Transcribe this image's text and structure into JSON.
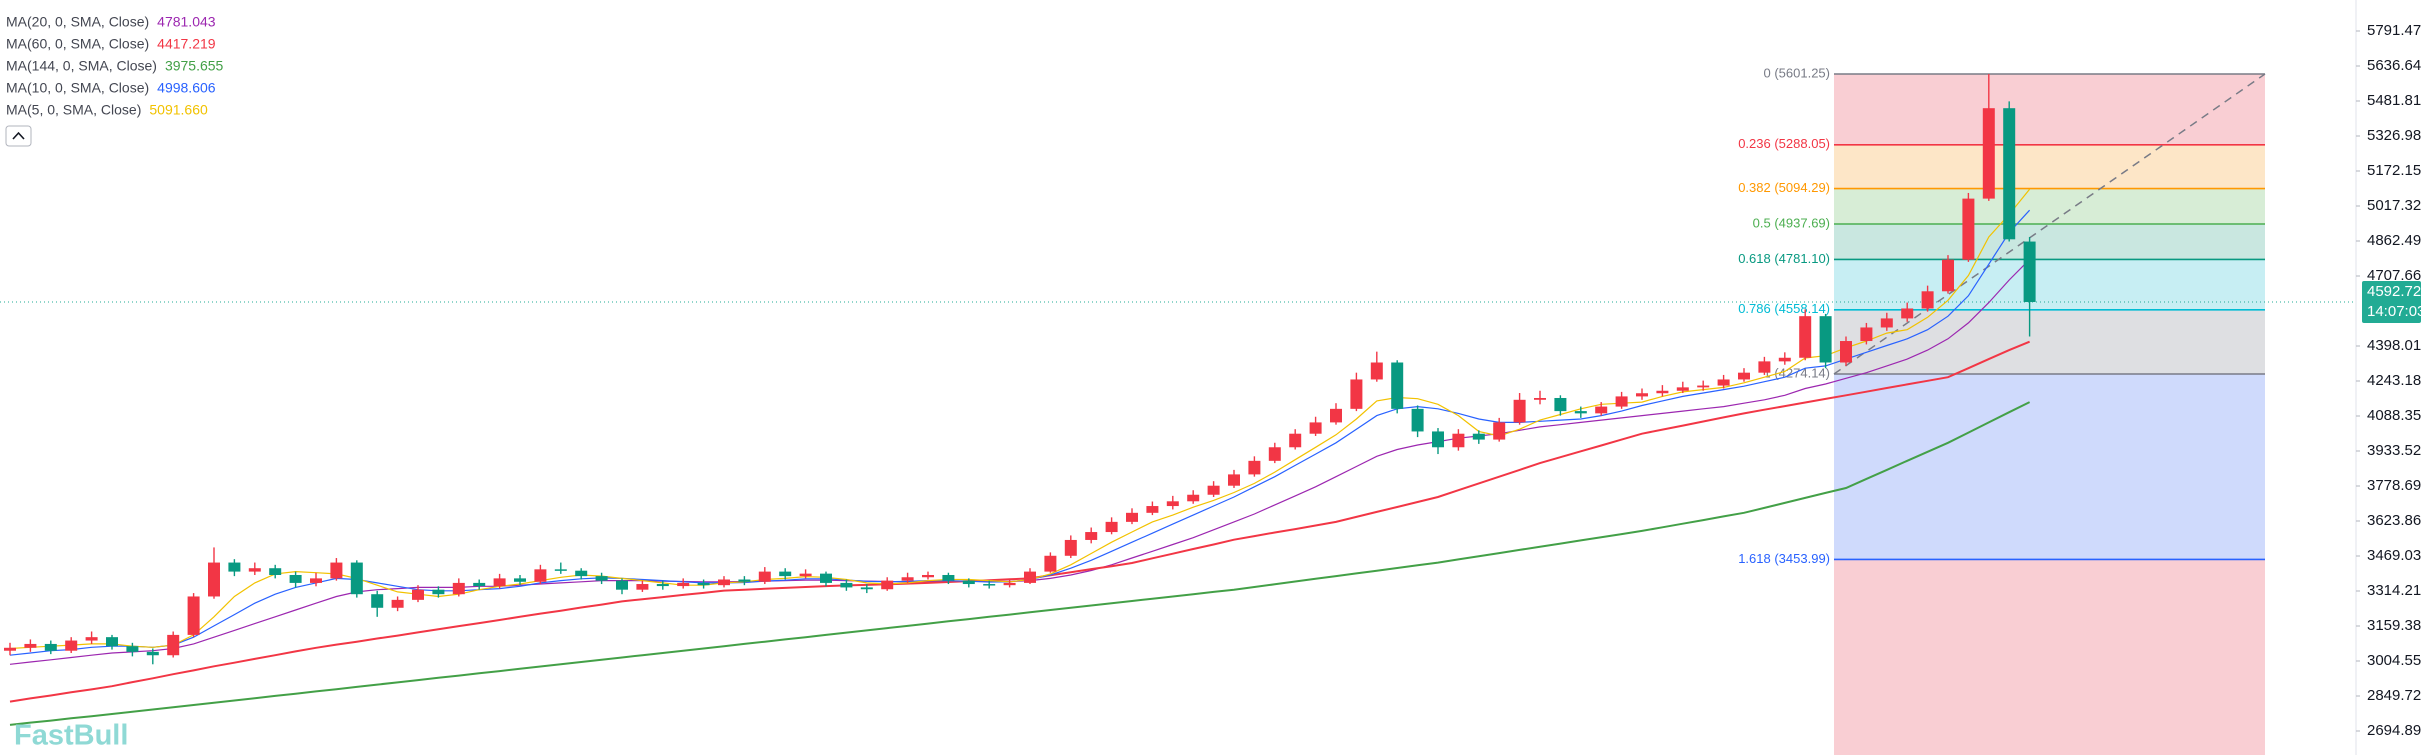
{
  "chart_data": {
    "type": "candlestick",
    "brand": "FastBull",
    "up_color": "#f23645",
    "down_color": "#089981",
    "ylim": [
      2588.7,
      5928.6
    ],
    "yticks": [
      5791.47,
      5636.64,
      5481.81,
      5326.98,
      5172.15,
      5017.32,
      4862.49,
      4707.66,
      4398.01,
      4243.18,
      4088.35,
      3933.52,
      3778.69,
      3623.86,
      3469.03,
      3314.21,
      3159.38,
      3004.55,
      2849.72,
      2694.89
    ],
    "last_price": {
      "value": 4592.72,
      "countdown": "14:07:03",
      "color": "#22ab94"
    },
    "open": [
      3050,
      3063,
      3080,
      3050,
      3095,
      3110,
      3070,
      3045,
      3030,
      3120,
      3290,
      3440,
      3400,
      3415,
      3385,
      3350,
      3370,
      3440,
      3300,
      3240,
      3275,
      3320,
      3300,
      3350,
      3336,
      3370,
      3355,
      3410,
      3404,
      3380,
      3360,
      3320,
      3345,
      3336,
      3350,
      3340,
      3365,
      3355,
      3400,
      3380,
      3391,
      3350,
      3330,
      3322,
      3360,
      3375,
      3385,
      3360,
      3345,
      3340,
      3350,
      3400,
      3470,
      3540,
      3575,
      3620,
      3660,
      3690,
      3711,
      3740,
      3780,
      3830,
      3890,
      3950,
      4010,
      4060,
      4120,
      4250,
      4325,
      4120,
      4020,
      3950,
      4010,
      3984,
      4060,
      4160,
      4168,
      4110,
      4100,
      4130,
      4175,
      4189,
      4200,
      4215,
      4223,
      4250,
      4280,
      4330,
      4346,
      4530,
      4325,
      4420,
      4480,
      4520,
      4564,
      4640,
      4780,
      5050,
      5450,
      4860
    ],
    "high": [
      3085,
      3100,
      3095,
      3110,
      3135,
      3120,
      3085,
      3060,
      3135,
      3305,
      3507,
      3455,
      3440,
      3430,
      3400,
      3395,
      3460,
      3450,
      3315,
      3290,
      3340,
      3335,
      3370,
      3365,
      3390,
      3385,
      3430,
      3440,
      3415,
      3395,
      3370,
      3360,
      3360,
      3370,
      3365,
      3380,
      3380,
      3420,
      3415,
      3410,
      3400,
      3365,
      3345,
      3375,
      3395,
      3400,
      3395,
      3370,
      3360,
      3365,
      3415,
      3485,
      3560,
      3595,
      3640,
      3680,
      3710,
      3735,
      3760,
      3800,
      3850,
      3910,
      3970,
      4030,
      4085,
      4145,
      4280,
      4373,
      4335,
      4135,
      4035,
      4030,
      4025,
      4080,
      4190,
      4200,
      4180,
      4130,
      4150,
      4195,
      4210,
      4225,
      4240,
      4245,
      4270,
      4300,
      4350,
      4370,
      4560,
      4540,
      4440,
      4500,
      4545,
      4590,
      4665,
      4800,
      5075,
      5601.25,
      5480,
      4880
    ],
    "low": [
      3030,
      3045,
      3035,
      3040,
      3080,
      3055,
      3025,
      2990,
      3020,
      3110,
      3280,
      3380,
      3385,
      3370,
      3330,
      3335,
      3360,
      3285,
      3200,
      3225,
      3265,
      3285,
      3290,
      3320,
      3325,
      3340,
      3345,
      3390,
      3365,
      3345,
      3300,
      3310,
      3320,
      3325,
      3325,
      3330,
      3340,
      3345,
      3365,
      3370,
      3335,
      3315,
      3305,
      3315,
      3350,
      3365,
      3345,
      3330,
      3325,
      3330,
      3345,
      3395,
      3460,
      3525,
      3565,
      3610,
      3650,
      3675,
      3700,
      3730,
      3770,
      3820,
      3880,
      3940,
      4000,
      4050,
      4110,
      4240,
      4100,
      3995,
      3920,
      3935,
      3965,
      3975,
      4050,
      4140,
      4090,
      4080,
      4090,
      4120,
      4160,
      4175,
      4190,
      4200,
      4210,
      4240,
      4270,
      4315,
      4335,
      4300,
      4310,
      4405,
      4465,
      4505,
      4550,
      4630,
      4770,
      5040,
      4860,
      4440
    ],
    "close": [
      3063,
      3080,
      3050,
      3095,
      3110,
      3070,
      3045,
      3030,
      3120,
      3290,
      3440,
      3400,
      3415,
      3385,
      3350,
      3370,
      3440,
      3300,
      3240,
      3275,
      3320,
      3300,
      3350,
      3336,
      3370,
      3355,
      3410,
      3404,
      3380,
      3360,
      3320,
      3345,
      3336,
      3350,
      3340,
      3365,
      3355,
      3400,
      3380,
      3391,
      3350,
      3330,
      3322,
      3360,
      3375,
      3385,
      3360,
      3345,
      3340,
      3350,
      3400,
      3470,
      3540,
      3575,
      3620,
      3660,
      3690,
      3711,
      3740,
      3780,
      3830,
      3890,
      3950,
      4010,
      4060,
      4120,
      4250,
      4325,
      4120,
      4020,
      3950,
      4010,
      3984,
      4060,
      4160,
      4168,
      4110,
      4100,
      4130,
      4175,
      4189,
      4200,
      4215,
      4223,
      4250,
      4280,
      4330,
      4346,
      4530,
      4325,
      4420,
      4480,
      4520,
      4564,
      4640,
      4780,
      5050,
      5450,
      4870,
      4592.72
    ],
    "series": [
      {
        "name": "MA(20, 0, SMA, Close)",
        "color": "#9c27b0",
        "legend_value": 4781.043,
        "values": [
          2990,
          3000,
          3010,
          3020,
          3030,
          3040,
          3045,
          3050,
          3060,
          3080,
          3110,
          3140,
          3170,
          3200,
          3230,
          3260,
          3290,
          3310,
          3320,
          3325,
          3330,
          3330,
          3330,
          3335,
          3335,
          3340,
          3345,
          3350,
          3355,
          3360,
          3360,
          3360,
          3358,
          3356,
          3355,
          3355,
          3356,
          3358,
          3360,
          3362,
          3362,
          3360,
          3358,
          3356,
          3355,
          3356,
          3358,
          3358,
          3357,
          3356,
          3360,
          3370,
          3385,
          3405,
          3430,
          3460,
          3490,
          3520,
          3550,
          3585,
          3620,
          3655,
          3695,
          3735,
          3775,
          3820,
          3865,
          3910,
          3940,
          3960,
          3975,
          3990,
          4000,
          4010,
          4025,
          4040,
          4050,
          4060,
          4070,
          4080,
          4090,
          4100,
          4110,
          4120,
          4130,
          4145,
          4160,
          4180,
          4210,
          4230,
          4255,
          4280,
          4310,
          4340,
          4380,
          4430,
          4500,
          4590,
          4690,
          4781
        ]
      },
      {
        "name": "MA(60, 0, SMA, Close)",
        "color": "#f23645",
        "legend_value": 4417.219,
        "values": [
          2825,
          2839,
          2852,
          2866,
          2879,
          2893,
          2911,
          2928,
          2946,
          2963,
          2981,
          2997,
          3014,
          3030,
          3047,
          3063,
          3077,
          3090,
          3104,
          3117,
          3131,
          3145,
          3159,
          3172,
          3186,
          3200,
          3214,
          3227,
          3241,
          3254,
          3268,
          3278,
          3287,
          3297,
          3306,
          3316,
          3320,
          3324,
          3328,
          3332,
          3336,
          3339,
          3341,
          3344,
          3347,
          3350,
          3354,
          3358,
          3362,
          3366,
          3370,
          3384,
          3397,
          3411,
          3424,
          3438,
          3459,
          3479,
          3500,
          3520,
          3541,
          3557,
          3573,
          3588,
          3604,
          3620,
          3642,
          3664,
          3686,
          3708,
          3730,
          3760,
          3790,
          3820,
          3850,
          3880,
          3906,
          3932,
          3958,
          3984,
          4010,
          4028,
          4046,
          4064,
          4082,
          4100,
          4116,
          4132,
          4148,
          4164,
          4180,
          4196,
          4212,
          4228,
          4244,
          4260,
          4300,
          4340,
          4380,
          4417
        ]
      },
      {
        "name": "MA(144, 0, SMA, Close)",
        "color": "#43a047",
        "legend_value": 3975.655,
        "values": [
          2722,
          2732,
          2741,
          2751,
          2760,
          2770,
          2780,
          2790,
          2800,
          2810,
          2820,
          2830,
          2840,
          2850,
          2860,
          2870,
          2880,
          2890,
          2900,
          2910,
          2920,
          2930,
          2940,
          2950,
          2960,
          2970,
          2980,
          2990,
          3000,
          3010,
          3020,
          3030,
          3040,
          3050,
          3060,
          3070,
          3080,
          3090,
          3100,
          3110,
          3120,
          3130,
          3140,
          3150,
          3160,
          3170,
          3180,
          3190,
          3200,
          3210,
          3220,
          3230,
          3240,
          3250,
          3260,
          3270,
          3280,
          3290,
          3300,
          3310,
          3320,
          3332,
          3344,
          3356,
          3368,
          3380,
          3392,
          3404,
          3416,
          3428,
          3440,
          3454,
          3468,
          3482,
          3496,
          3510,
          3524,
          3538,
          3552,
          3566,
          3580,
          3596,
          3612,
          3628,
          3644,
          3660,
          3682,
          3704,
          3726,
          3748,
          3770,
          3810,
          3850,
          3890,
          3930,
          3970,
          4015,
          4060,
          4105,
          4150
        ]
      },
      {
        "name": "MA(10, 0, SMA, Close)",
        "color": "#2962ff",
        "legend_value": 4998.606,
        "values": [
          3030,
          3040,
          3050,
          3055,
          3065,
          3070,
          3070,
          3065,
          3075,
          3110,
          3160,
          3210,
          3260,
          3300,
          3330,
          3350,
          3370,
          3365,
          3350,
          3335,
          3320,
          3315,
          3315,
          3320,
          3325,
          3335,
          3350,
          3360,
          3368,
          3372,
          3370,
          3365,
          3360,
          3355,
          3350,
          3350,
          3352,
          3358,
          3362,
          3368,
          3368,
          3363,
          3357,
          3355,
          3357,
          3360,
          3360,
          3357,
          3354,
          3355,
          3365,
          3385,
          3415,
          3450,
          3490,
          3530,
          3570,
          3610,
          3650,
          3690,
          3730,
          3775,
          3820,
          3870,
          3920,
          3970,
          4030,
          4090,
          4120,
          4130,
          4120,
          4100,
          4075,
          4060,
          4060,
          4065,
          4070,
          4075,
          4090,
          4110,
          4135,
          4155,
          4175,
          4190,
          4205,
          4220,
          4240,
          4260,
          4300,
          4310,
          4340,
          4370,
          4400,
          4430,
          4470,
          4530,
          4620,
          4760,
          4900,
          4998.6
        ]
      },
      {
        "name": "MA(5, 0, SMA, Close)",
        "color": "#f2c200",
        "legend_value": {
          "value": 5091.66,
          "label": "5091.660"
        },
        "values": [
          3060,
          3065,
          3070,
          3075,
          3080,
          3080,
          3070,
          3065,
          3075,
          3120,
          3200,
          3290,
          3350,
          3390,
          3400,
          3395,
          3390,
          3370,
          3340,
          3310,
          3300,
          3290,
          3300,
          3320,
          3335,
          3345,
          3360,
          3375,
          3385,
          3380,
          3370,
          3360,
          3350,
          3340,
          3340,
          3350,
          3355,
          3365,
          3370,
          3378,
          3375,
          3365,
          3350,
          3345,
          3350,
          3360,
          3365,
          3365,
          3360,
          3355,
          3365,
          3390,
          3430,
          3480,
          3530,
          3575,
          3620,
          3650,
          3685,
          3715,
          3750,
          3790,
          3840,
          3895,
          3950,
          4005,
          4075,
          4155,
          4170,
          4165,
          4140,
          4090,
          4020,
          4000,
          4030,
          4070,
          4095,
          4120,
          4140,
          4145,
          4150,
          4175,
          4195,
          4205,
          4215,
          4235,
          4260,
          4285,
          4345,
          4355,
          4390,
          4420,
          4455,
          4470,
          4525,
          4600,
          4710,
          4880,
          4980,
          5091.66
        ]
      }
    ],
    "fib": {
      "levels": [
        {
          "value": 5601.25,
          "label": "0 (5601.25)",
          "color": "#787b86",
          "band": "#f8c6cb"
        },
        {
          "value": 5288.05,
          "label": "0.236 (5288.05)",
          "color": "#f23645",
          "band": "#fde2bd"
        },
        {
          "value": 5094.29,
          "label": "0.382 (5094.29)",
          "color": "#ff9800",
          "band": "#d0eacf"
        },
        {
          "value": 4937.69,
          "label": "0.5 (4937.69)",
          "color": "#4caf50",
          "band": "#bfe3da"
        },
        {
          "value": 4781.1,
          "label": "0.618 (4781.10)",
          "color": "#089981",
          "band": "#bdebf1"
        },
        {
          "value": 4558.14,
          "label": "0.786 (4558.14)",
          "color": "#00bcd4",
          "band": "#d8d9dd"
        },
        {
          "value": 4274.14,
          "label": "1 (4274.14)",
          "color": "#787b86",
          "band": "#c7d3fb"
        },
        {
          "value": 3453.99,
          "label": "1.618 (3453.99)",
          "color": "#2962ff",
          "band": "#f8c6cb"
        }
      ],
      "trend_color": "#787b86"
    }
  }
}
